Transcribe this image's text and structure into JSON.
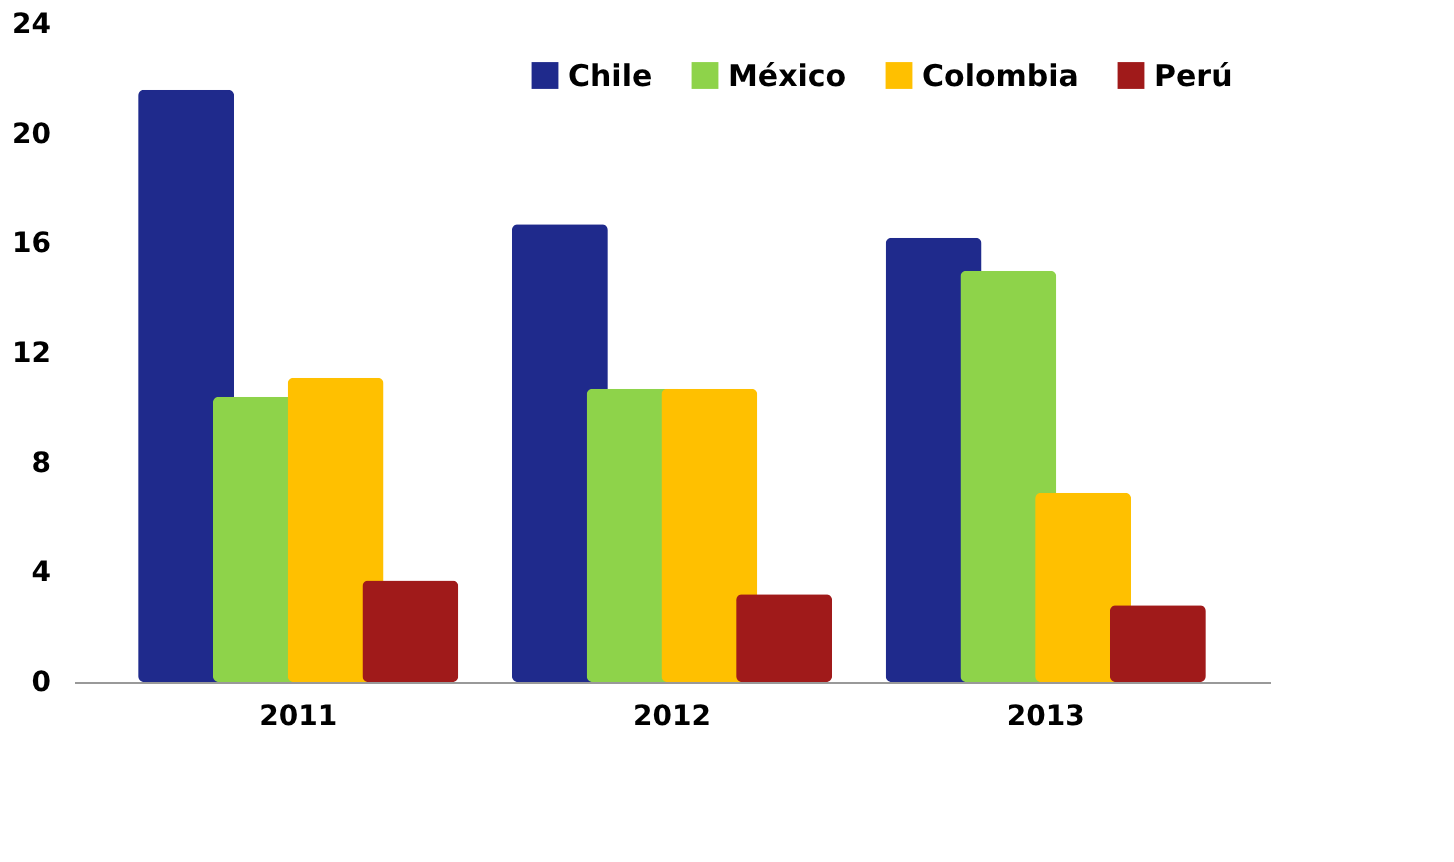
{
  "chart_data": {
    "type": "bar",
    "categories": [
      "2011",
      "2012",
      "2013"
    ],
    "series": [
      {
        "name": "Chile",
        "color": "#1f2a8c",
        "values": [
          21.6,
          16.7,
          16.2
        ]
      },
      {
        "name": "México",
        "color": "#8ed34a",
        "values": [
          10.4,
          10.7,
          15.0
        ]
      },
      {
        "name": "Colombia",
        "color": "#ffc000",
        "values": [
          11.1,
          10.7,
          6.9
        ]
      },
      {
        "name": "Perú",
        "color": "#a01a1a",
        "values": [
          3.7,
          3.2,
          2.8
        ]
      }
    ],
    "ylim": [
      0,
      24
    ],
    "yticks": [
      0,
      4,
      8,
      12,
      16,
      20,
      24
    ],
    "grid": false,
    "legend": "top right"
  }
}
